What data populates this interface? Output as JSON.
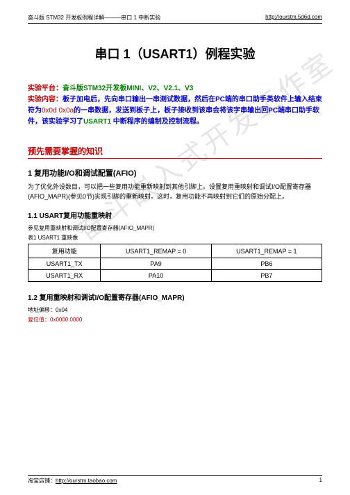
{
  "header": {
    "left": "奋斗版 STM32 开发板例程详解———串口 1 中断实验",
    "right": "http://ourstm.5d6d.com"
  },
  "title": "串口 1（USART1）例程实验",
  "intro": {
    "platform_label": "实验平台：",
    "platform_value": "奋斗版STM32开发板MINI、V2、V2.1、V3",
    "content_label": "实验内容：",
    "content_pre": "板子加电后，先向串口输出一串测试数据，然后在PC端的串口助手类软件上输入结束符为",
    "content_code": "0x0d 0x0a",
    "content_post1": "的一串数据，发送到板子上，板子接收到该串会将该字串输出回PC端串口助手软件，该实验学习了",
    "content_usart": "USART1 ",
    "content_post2": "中断程序的编制及控制流程。"
  },
  "watermark": "奋斗嵌入式开发工作室",
  "h2_1": "预先需要掌握的知识",
  "h3_1": "1 复用功能I/O和调试配置(AFIO)",
  "para_1": "为了优化外设数目，可以把一些复用功能重新映射到其他引脚上。设置复用重映射和调试I/O配置寄存器(AFIO_MAPR)(参见0节)实现引脚的重新映射。这时，复用功能不再映射到它们的原始分配上。",
  "h4_1": "1.1 USART复用功能重映射",
  "caption_1a": "参见复用重映射和调试I/O配置寄存器(AFIO_MAPR)",
  "caption_1b": "表1  USART1 重映像",
  "table": {
    "headers": [
      "复用功能",
      "USART1_REMAP = 0",
      "USART1_REMAP = 1"
    ],
    "rows": [
      [
        "USART1_TX",
        "PA9",
        "PB6"
      ],
      [
        "USART1_RX",
        "PA10",
        "PB7"
      ]
    ]
  },
  "h4_2": "1.2 复用重映射和调试I/O配置寄存器(AFIO_MAPR)",
  "reg_offset_label": "地址偏移：",
  "reg_offset_value": "0x04",
  "reg_reset_label": "复位值：",
  "reg_reset_value": "0x0000 0000",
  "footer": {
    "left_label": "淘宝店铺：",
    "left_link": "http://ourstm.taobao.com",
    "page": "1"
  }
}
